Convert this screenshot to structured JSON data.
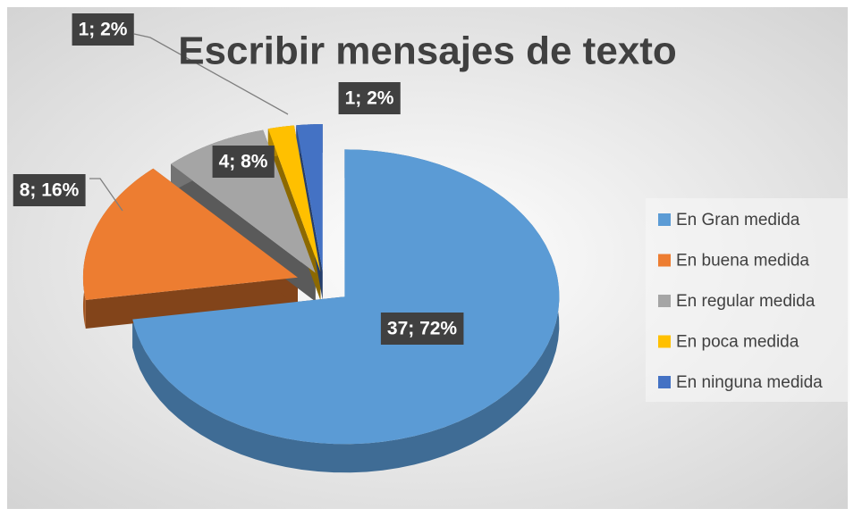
{
  "chart_data": {
    "type": "pie",
    "title": "Escribir mensajes de texto",
    "categories": [
      "En Gran medida",
      "En buena medida",
      "En regular medida",
      "En poca medida",
      "En ninguna medida"
    ],
    "values": [
      37,
      8,
      4,
      1,
      1
    ],
    "value_labels": [
      "37; 72%",
      "8; 16%",
      "4; 8%",
      "1; 2%",
      "1; 2%"
    ],
    "colors": [
      "#5b9bd5",
      "#ed7d31",
      "#a5a5a5",
      "#ffc000",
      "#4472c4"
    ],
    "legend": "right"
  }
}
